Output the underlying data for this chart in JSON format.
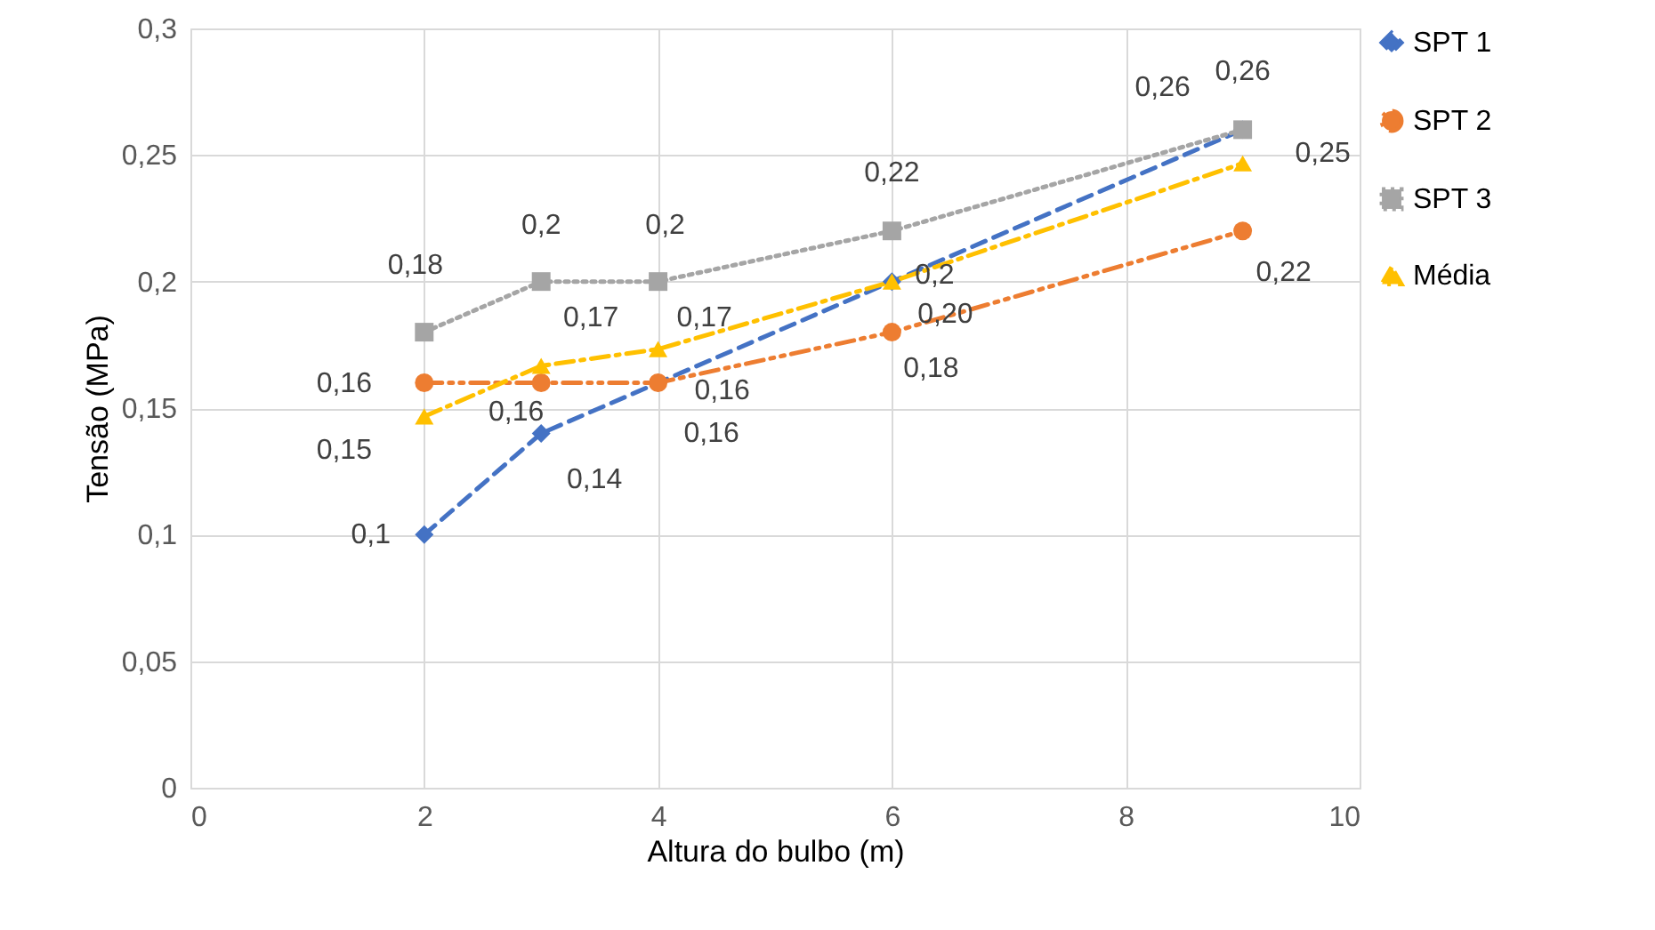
{
  "chart_data": {
    "type": "line",
    "xlabel": "Altura do bulbo (m)",
    "ylabel": "Tensão (MPa)",
    "x": [
      2,
      3,
      4,
      6,
      9
    ],
    "series": [
      {
        "name": "SPT 1",
        "color": "#4472c4",
        "marker": "diamond",
        "line_style": "dashed",
        "values": [
          0.1,
          0.14,
          0.16,
          0.2,
          0.26
        ],
        "value_labels": [
          "0,1",
          "0,14",
          "0,16",
          "0,2",
          "0,26"
        ]
      },
      {
        "name": "SPT 2",
        "color": "#ed7d31",
        "marker": "circle",
        "line_style": "dashdotdot",
        "values": [
          0.16,
          0.16,
          0.16,
          0.18,
          0.22
        ],
        "value_labels": [
          "0,16",
          "0,16",
          "0,16",
          "0,18",
          "0,22"
        ]
      },
      {
        "name": "SPT 3",
        "color": "#a5a5a5",
        "marker": "square",
        "line_style": "dotted",
        "values": [
          0.18,
          0.2,
          0.2,
          0.22,
          0.26
        ],
        "value_labels": [
          "0,18",
          "0,2",
          "0,2",
          "0,22",
          "0,26"
        ]
      },
      {
        "name": "Média",
        "color": "#ffc000",
        "marker": "triangle",
        "line_style": "dashdot",
        "values": [
          0.1467,
          0.1667,
          0.1733,
          0.2,
          0.2467
        ],
        "value_labels": [
          "0,15",
          "0,17",
          "0,17",
          "0,20",
          "0,25"
        ]
      }
    ],
    "xlim": [
      0,
      10
    ],
    "xticks": [
      0,
      2,
      4,
      6,
      8,
      10
    ],
    "ylim": [
      0,
      0.3
    ],
    "yticks": [
      0,
      {
        "value": 0.05,
        "label": "0,05"
      },
      {
        "value": 0.1,
        "label": "0,1"
      },
      {
        "value": 0.15,
        "label": "0,15"
      },
      {
        "value": 0.2,
        "label": "0,2"
      },
      {
        "value": 0.25,
        "label": "0,25"
      },
      {
        "value": 0.3,
        "label": "0,3"
      }
    ],
    "grid": true,
    "legend": "right"
  }
}
